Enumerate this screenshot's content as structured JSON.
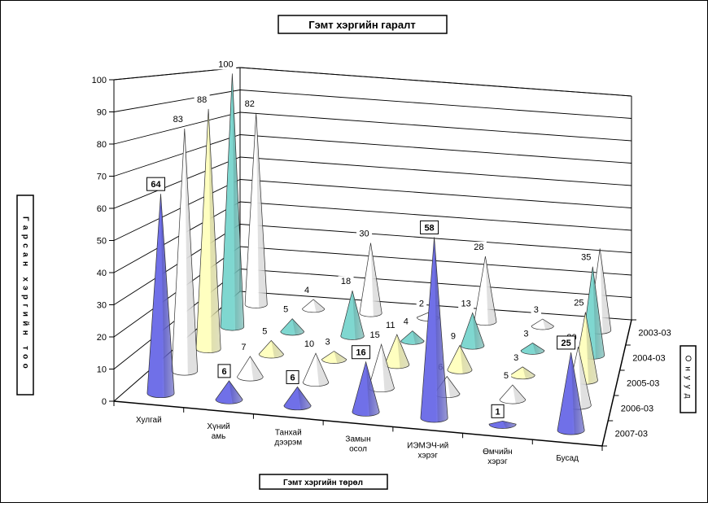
{
  "chart_data": {
    "type": "bar",
    "style": "3d-cone",
    "title": "Гэмт хэргийн гаралт",
    "xlabel": "Гэмт хэргийн төрөл",
    "ylabel": "Гарсан хэргийн тоо",
    "zlabel": "Онууд",
    "ylim": [
      0,
      100
    ],
    "yticks": [
      "0",
      "10",
      "20",
      "30",
      "40",
      "50",
      "60",
      "70",
      "80",
      "90",
      "100"
    ],
    "grid": true,
    "categories": [
      [
        "Хулгай"
      ],
      [
        "Хүний",
        "амь"
      ],
      [
        "Танхай",
        "дээрэм"
      ],
      [
        "Замын",
        "осол"
      ],
      [
        "ИЭМЭЧ-ий",
        "хэрэг"
      ],
      [
        "Өмчийн",
        "хэрэг"
      ],
      [
        "Бусад"
      ]
    ],
    "series": [
      {
        "name": "2003-03",
        "color": "#ffffff",
        "values": [
          82,
          4,
          30,
          2,
          28,
          3,
          35
        ],
        "labels": [
          "82",
          "4",
          "30",
          "2",
          "28",
          "3",
          ""
        ]
      },
      {
        "name": "2004-03",
        "color": "#7fd7d0",
        "values": [
          100,
          5,
          18,
          4,
          13,
          3,
          35
        ],
        "labels": [
          "100",
          "5",
          "18",
          "4",
          "13",
          "3",
          "35"
        ]
      },
      {
        "name": "2005-03",
        "color": "#ffffc0",
        "values": [
          88,
          5,
          3,
          11,
          9,
          3,
          25
        ],
        "labels": [
          "88",
          "5",
          "3",
          "11",
          "9",
          "3",
          "25"
        ]
      },
      {
        "name": "2006-03",
        "color": "#ffffff",
        "values": [
          83,
          7,
          10,
          15,
          6,
          5,
          20
        ],
        "labels": [
          "83",
          "7",
          "10",
          "15",
          "6",
          "5",
          "20"
        ]
      },
      {
        "name": "2007-03",
        "color": "#7070e8",
        "values": [
          64,
          6,
          6,
          16,
          58,
          1,
          25
        ],
        "labels": [
          "64",
          "6",
          "6",
          "16",
          "58",
          "1",
          "25"
        ]
      }
    ]
  }
}
